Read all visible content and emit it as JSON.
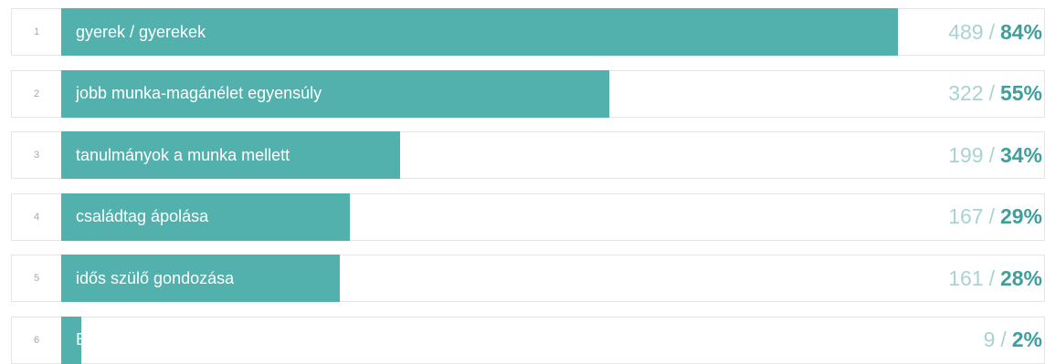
{
  "chart_data": {
    "type": "bar",
    "orientation": "horizontal",
    "separator": "/",
    "percent_suffix": "%",
    "bar_color": "#52b0ad",
    "xlim": [
      0,
      100
    ],
    "items": [
      {
        "rank": "1",
        "label": "gyerek / gyerekek",
        "count": "489",
        "percent": 84
      },
      {
        "rank": "2",
        "label": "jobb munka-magánélet egyensúly",
        "count": "322",
        "percent": 55
      },
      {
        "rank": "3",
        "label": "tanulmányok a munka mellett",
        "count": "199",
        "percent": 34
      },
      {
        "rank": "4",
        "label": "családtag ápolása",
        "count": "167",
        "percent": 29
      },
      {
        "rank": "5",
        "label": "idős szülő gondozása",
        "count": "161",
        "percent": 28
      },
      {
        "rank": "6",
        "label": "Egyéb",
        "count": "9",
        "percent": 2
      }
    ]
  }
}
